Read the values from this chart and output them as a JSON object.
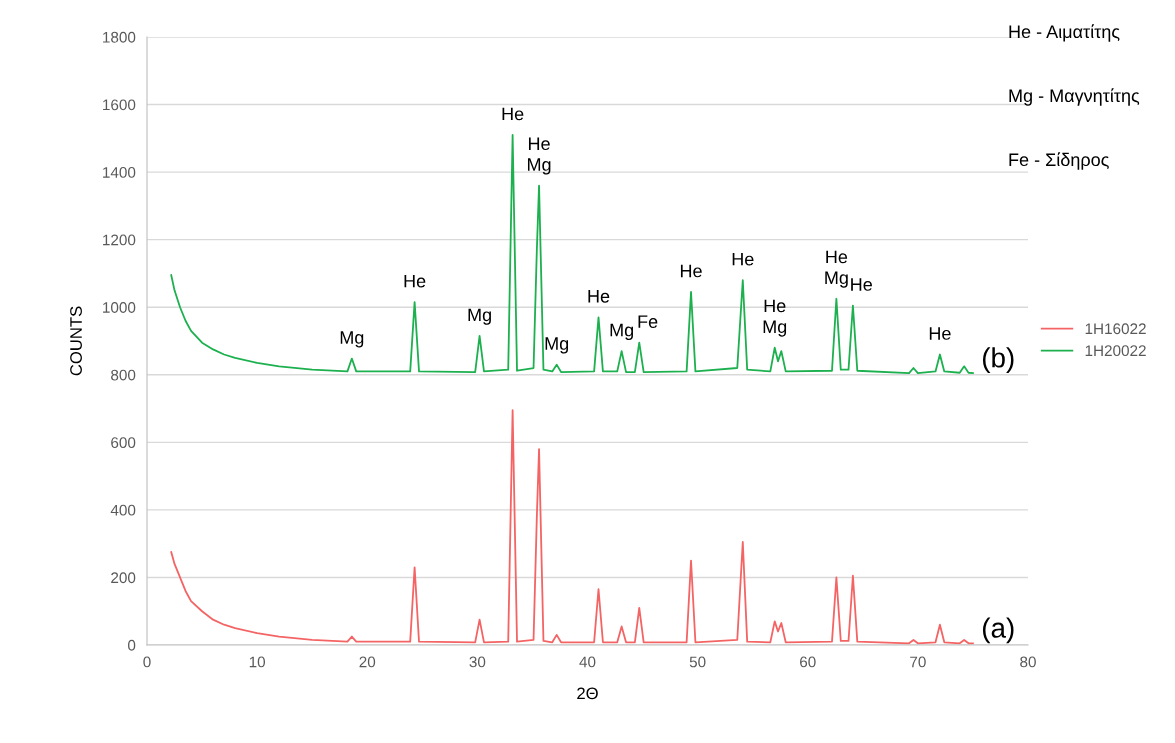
{
  "chart_data": {
    "type": "line",
    "xlabel": "2Θ",
    "ylabel": "COUNTS",
    "x": [
      2.2,
      2.5,
      3,
      3.5,
      4,
      5,
      6,
      7,
      8,
      10,
      12,
      15,
      18.2,
      18.6,
      19,
      23.9,
      24.3,
      24.7,
      29.8,
      30.2,
      30.6,
      32.8,
      33.2,
      33.6,
      35.1,
      35.4,
      35.6,
      36.0,
      36.8,
      37.2,
      37.6,
      40.6,
      41.0,
      41.4,
      42.7,
      43.1,
      43.5,
      44.3,
      44.7,
      45.1,
      49.0,
      49.4,
      49.8,
      53.6,
      54.1,
      54.5,
      56.6,
      57.0,
      57.3,
      57.6,
      58.0,
      62.2,
      62.6,
      63.0,
      63.7,
      64.1,
      64.5,
      69.2,
      69.6,
      70.0,
      71.6,
      72.0,
      72.4,
      73.8,
      74.2,
      74.6,
      75.0
    ],
    "series": [
      {
        "name": "1H16022",
        "color": "#f46464",
        "values": [
          275,
          240,
          200,
          160,
          130,
          100,
          75,
          60,
          50,
          35,
          25,
          15,
          10,
          25,
          10,
          10,
          230,
          10,
          8,
          75,
          8,
          10,
          695,
          10,
          15,
          380,
          580,
          12,
          8,
          30,
          8,
          8,
          165,
          8,
          8,
          55,
          8,
          8,
          110,
          8,
          8,
          250,
          8,
          15,
          305,
          10,
          8,
          70,
          40,
          65,
          8,
          10,
          200,
          12,
          12,
          205,
          10,
          5,
          15,
          5,
          8,
          60,
          8,
          5,
          15,
          5,
          5
        ]
      },
      {
        "name": "1H20022",
        "color": "#1db04f",
        "values": [
          1095,
          1050,
          1000,
          960,
          930,
          895,
          875,
          860,
          850,
          835,
          825,
          815,
          810,
          848,
          810,
          810,
          1015,
          810,
          808,
          915,
          810,
          815,
          1510,
          812,
          820,
          1170,
          1360,
          815,
          810,
          830,
          808,
          810,
          970,
          810,
          810,
          870,
          808,
          808,
          895,
          808,
          810,
          1045,
          810,
          820,
          1080,
          815,
          810,
          880,
          840,
          870,
          810,
          812,
          1025,
          815,
          815,
          1005,
          812,
          805,
          820,
          805,
          810,
          860,
          810,
          806,
          825,
          806,
          805
        ]
      }
    ],
    "xlim": [
      0,
      80
    ],
    "xticks": [
      0,
      10,
      20,
      30,
      40,
      50,
      60,
      70,
      80
    ],
    "ylim": [
      0,
      1800
    ],
    "yticks": [
      0,
      200,
      400,
      600,
      800,
      1000,
      1200,
      1400,
      1600,
      1800
    ],
    "grid": "y",
    "legend": "right",
    "marker": "none",
    "line_style": "solid",
    "annotations": [
      {
        "text": "Mg",
        "x": 18.6,
        "y": 848
      },
      {
        "text": "He",
        "x": 24.3,
        "y": 1015
      },
      {
        "text": "Mg",
        "x": 30.2,
        "y": 915
      },
      {
        "text": "He",
        "x": 33.2,
        "y": 1510
      },
      {
        "text": "Mg",
        "x": 35.6,
        "y": 1360
      },
      {
        "text": "He",
        "x": 35.6,
        "y": 1360
      },
      {
        "text": "Mg",
        "x": 37.2,
        "y": 830
      },
      {
        "text": "He",
        "x": 41.0,
        "y": 970
      },
      {
        "text": "Mg",
        "x": 43.1,
        "y": 870
      },
      {
        "text": "Fe",
        "x": 44.7,
        "y": 895
      },
      {
        "text": "He",
        "x": 49.4,
        "y": 1045
      },
      {
        "text": "He",
        "x": 54.1,
        "y": 1080
      },
      {
        "text": "Mg",
        "x": 57.0,
        "y": 880
      },
      {
        "text": "He",
        "x": 57.0,
        "y": 880
      },
      {
        "text": "Mg",
        "x": 62.6,
        "y": 1025
      },
      {
        "text": "He",
        "x": 62.6,
        "y": 1025
      },
      {
        "text": "He",
        "x": 64.1,
        "y": 1005
      },
      {
        "text": "He",
        "x": 72.0,
        "y": 860
      },
      {
        "text": "(b)",
        "x": 75.0,
        "y": 805
      },
      {
        "text": "(a)",
        "x": 75.0,
        "y": 5
      },
      "He - Αιματίτης",
      "Mg - Μαγνητίτης",
      "Fe - Σίδηρος"
    ]
  }
}
